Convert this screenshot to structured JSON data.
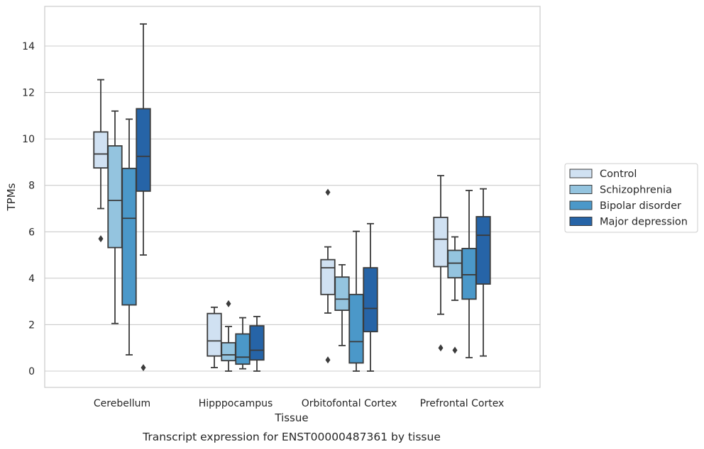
{
  "chart_data": {
    "type": "box",
    "title": "",
    "caption": "Transcript expression for ENST00000487361 by tissue",
    "xlabel": "Tissue",
    "ylabel": "TPMs",
    "ylim": [
      -0.72,
      15.6
    ],
    "yticks": [
      0,
      2,
      4,
      6,
      8,
      10,
      12,
      14
    ],
    "grid": "horizontal",
    "legend_position": "right",
    "categories": [
      "Cerebellum",
      "Hipppocampus",
      "Orbitofontal Cortex",
      "Prefrontal Cortex"
    ],
    "series": [
      {
        "name": "Control",
        "color": "#d0e1f2",
        "boxes": [
          {
            "whislo": 7.0,
            "q1": 8.75,
            "med": 9.35,
            "q3": 10.3,
            "whishi": 12.55,
            "fliers": [
              5.7
            ]
          },
          {
            "whislo": 0.15,
            "q1": 0.65,
            "med": 1.3,
            "q3": 2.48,
            "whishi": 2.75,
            "fliers": []
          },
          {
            "whislo": 2.5,
            "q1": 3.3,
            "med": 4.45,
            "q3": 4.8,
            "whishi": 5.35,
            "fliers": [
              7.7,
              0.48
            ]
          },
          {
            "whislo": 2.45,
            "q1": 4.5,
            "med": 5.68,
            "q3": 6.62,
            "whishi": 8.42,
            "fliers": [
              1.0
            ]
          }
        ]
      },
      {
        "name": "Schizophrenia",
        "color": "#94c4df",
        "boxes": [
          {
            "whislo": 2.05,
            "q1": 5.32,
            "med": 7.35,
            "q3": 9.7,
            "whishi": 11.2,
            "fliers": []
          },
          {
            "whislo": 0.0,
            "q1": 0.45,
            "med": 0.7,
            "q3": 1.22,
            "whishi": 1.92,
            "fliers": [
              2.9
            ]
          },
          {
            "whislo": 1.1,
            "q1": 2.62,
            "med": 3.1,
            "q3": 4.05,
            "whishi": 4.58,
            "fliers": []
          },
          {
            "whislo": 3.05,
            "q1": 4.02,
            "med": 4.65,
            "q3": 5.2,
            "whishi": 5.78,
            "fliers": [
              0.9
            ]
          }
        ]
      },
      {
        "name": "Bipolar disorder",
        "color": "#4b98c9",
        "boxes": [
          {
            "whislo": 0.7,
            "q1": 2.85,
            "med": 6.58,
            "q3": 8.73,
            "whishi": 10.85,
            "fliers": []
          },
          {
            "whislo": 0.1,
            "q1": 0.3,
            "med": 0.6,
            "q3": 1.6,
            "whishi": 2.3,
            "fliers": []
          },
          {
            "whislo": 0.0,
            "q1": 0.35,
            "med": 1.27,
            "q3": 3.3,
            "whishi": 6.02,
            "fliers": []
          },
          {
            "whislo": 0.58,
            "q1": 3.1,
            "med": 4.15,
            "q3": 5.28,
            "whishi": 7.78,
            "fliers": []
          }
        ]
      },
      {
        "name": "Major depression",
        "color": "#2664a7",
        "boxes": [
          {
            "whislo": 5.0,
            "q1": 7.75,
            "med": 9.25,
            "q3": 11.3,
            "whishi": 14.95,
            "fliers": [
              0.15
            ]
          },
          {
            "whislo": 0.0,
            "q1": 0.48,
            "med": 0.9,
            "q3": 1.95,
            "whishi": 2.35,
            "fliers": []
          },
          {
            "whislo": 0.0,
            "q1": 1.7,
            "med": 2.7,
            "q3": 4.45,
            "whishi": 6.35,
            "fliers": []
          },
          {
            "whislo": 0.65,
            "q1": 3.75,
            "med": 5.85,
            "q3": 6.65,
            "whishi": 7.85,
            "fliers": []
          }
        ]
      }
    ]
  },
  "colors": {
    "grid": "#cccccc",
    "frame": "#cccccc",
    "box_edge": "#3b3b3b"
  }
}
